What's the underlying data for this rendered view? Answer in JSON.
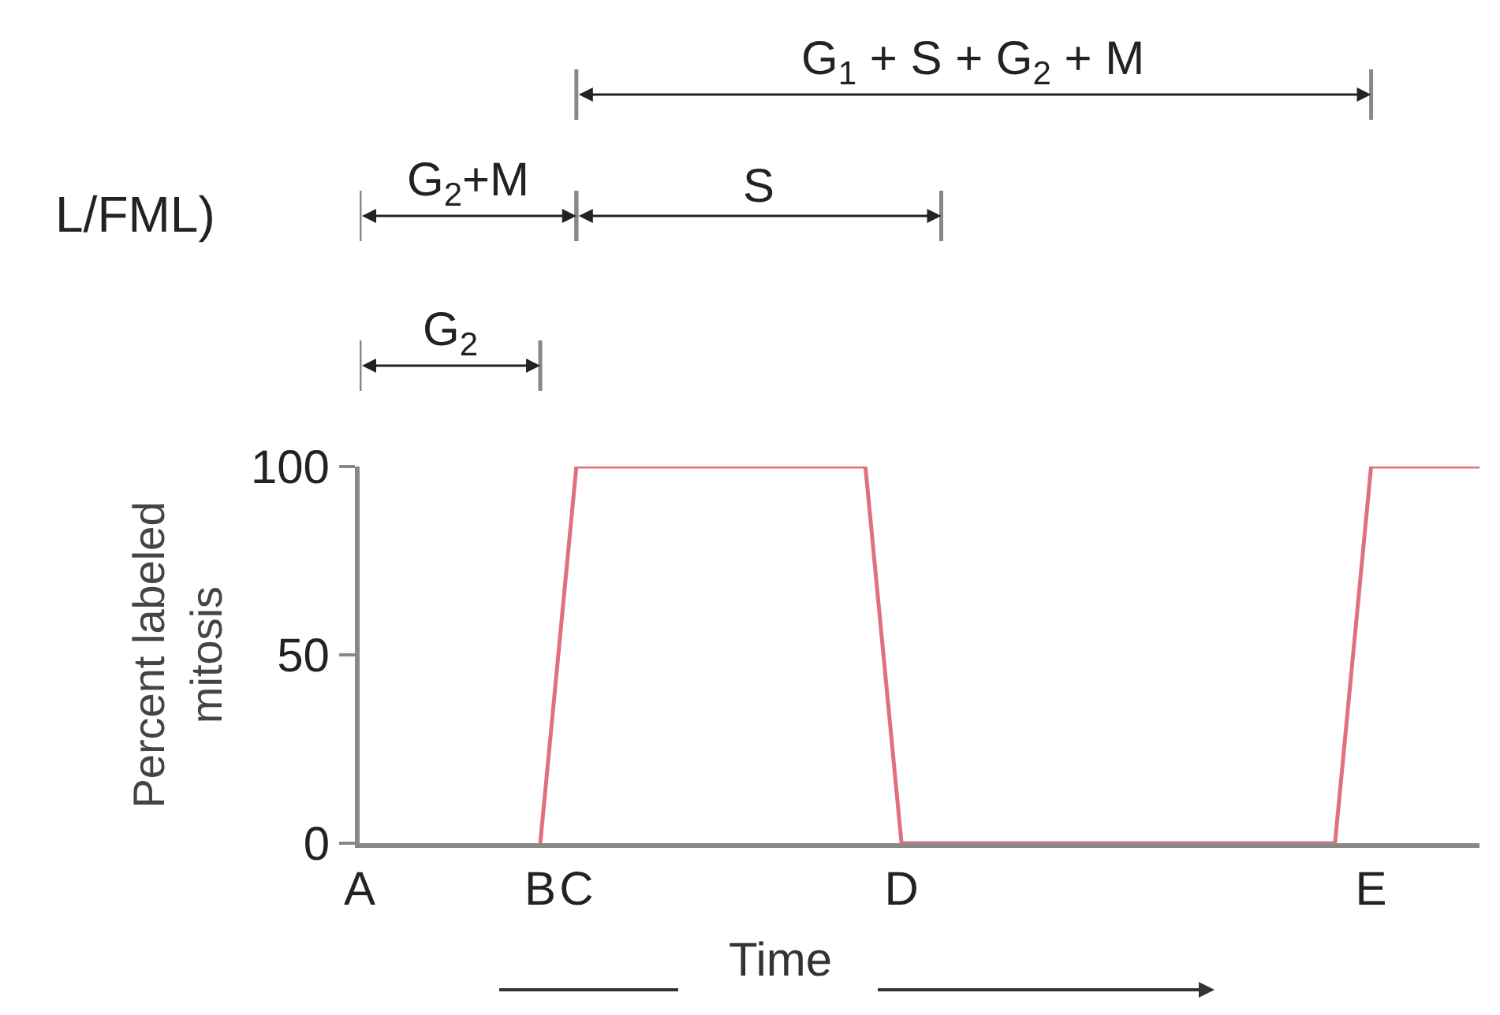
{
  "chart_data": {
    "type": "line",
    "xlabel": "Time",
    "ylabel": "Percent labeled\nmitosis",
    "categories": [
      "A",
      null,
      null,
      null,
      null,
      "B",
      "C",
      null,
      null,
      null,
      null,
      null,
      null,
      null,
      null,
      "D",
      null,
      null,
      null,
      null,
      null,
      null,
      null,
      null,
      null,
      null,
      null,
      null,
      "E",
      null,
      null,
      null
    ],
    "series": [
      {
        "color": "#e0707f",
        "values": [
          null,
          null,
          null,
          null,
          null,
          0,
          100,
          100,
          100,
          100,
          100,
          100,
          100,
          100,
          100,
          0,
          0,
          0,
          0,
          0,
          0,
          0,
          0,
          0,
          0,
          0,
          0,
          0,
          100,
          100,
          100,
          100
        ]
      }
    ],
    "ylim": [
      0,
      100
    ],
    "yticks": [
      0,
      50,
      100
    ],
    "annotations": [
      "L/FML)",
      "G$_{2}$",
      "G$_{2}$+M",
      "S",
      "G$_{1}$ + S + G$_{2}$ + M"
    ],
    "grid": false,
    "marker": "none",
    "line_style": "solid"
  }
}
